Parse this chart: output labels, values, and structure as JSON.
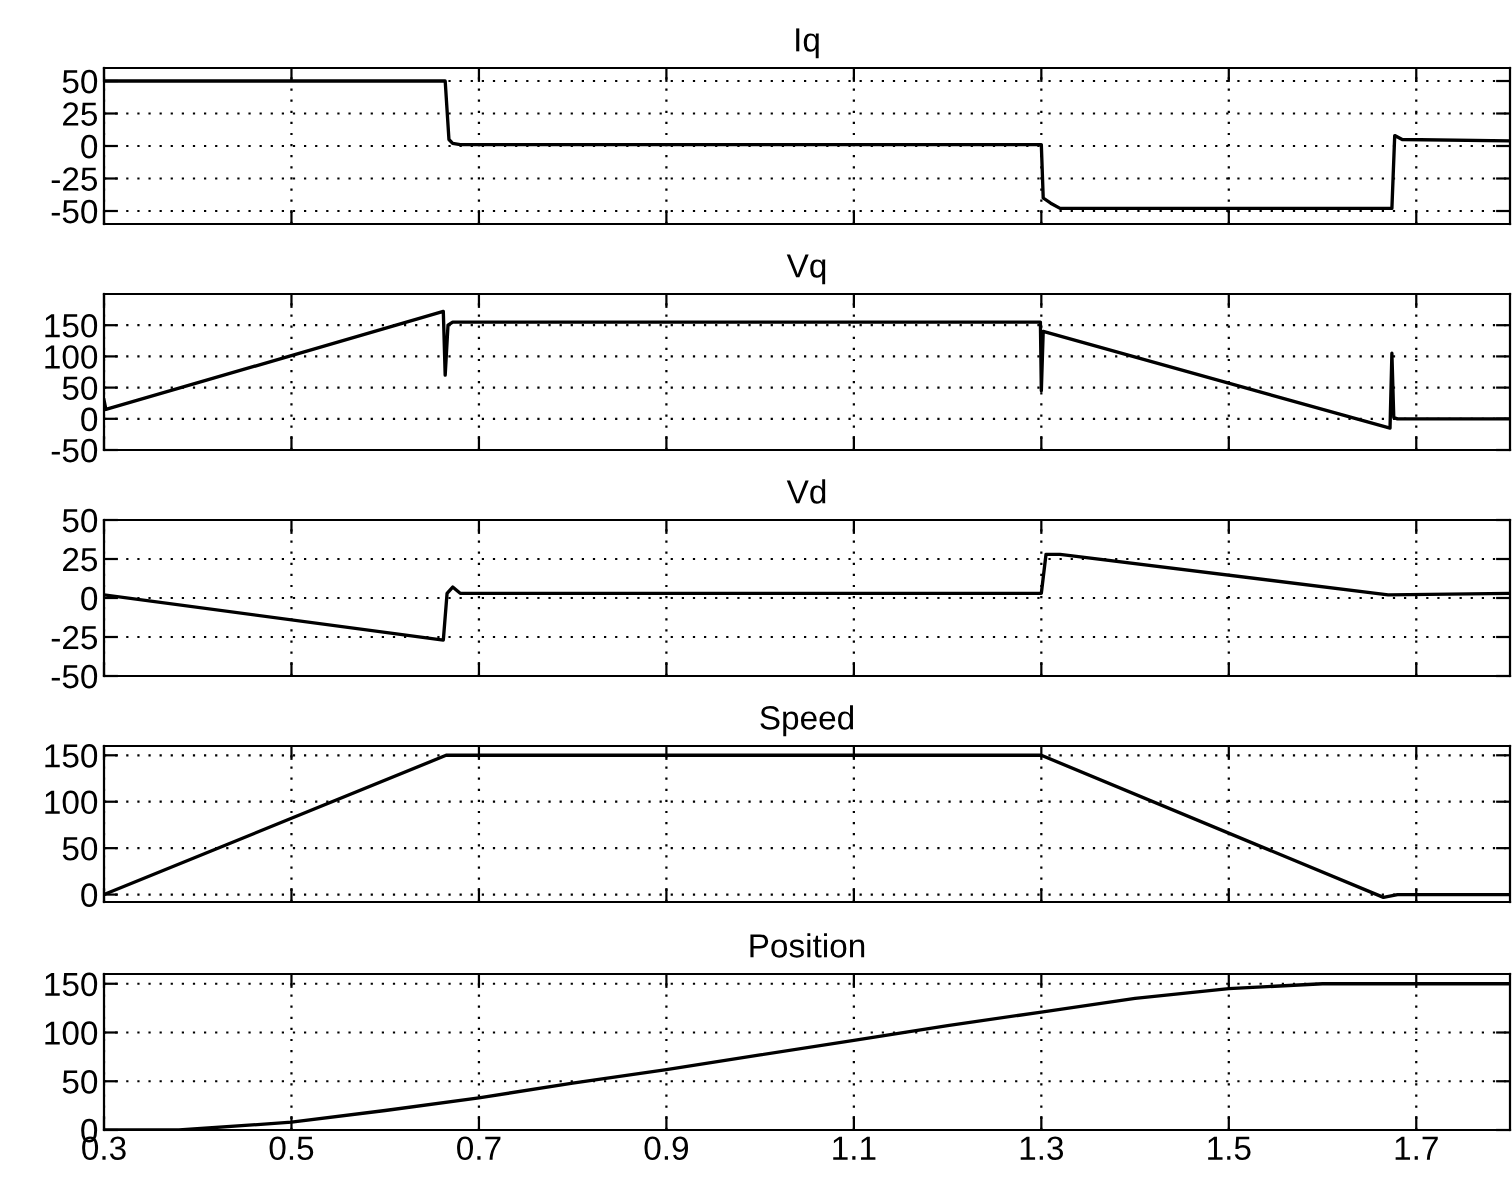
{
  "chart_data": [
    {
      "type": "line",
      "title": "Iq",
      "xlim": [
        0.3,
        1.8
      ],
      "xticks": [
        0.3,
        0.5,
        0.7,
        0.9,
        1.1,
        1.3,
        1.5,
        1.7
      ],
      "ylim": [
        -60,
        60
      ],
      "yticks": [
        -50,
        -25,
        0,
        25,
        50
      ],
      "grid": true,
      "tick_labels": "y",
      "series": [
        {
          "color": "#000000",
          "x": [
            0.3,
            0.664,
            0.668,
            0.672,
            0.68,
            1.3,
            1.302,
            1.31,
            1.32,
            1.674,
            1.677,
            1.685,
            1.8
          ],
          "values": [
            50,
            50,
            5,
            2,
            1,
            1,
            -40,
            -44,
            -48,
            -48,
            8,
            5,
            4
          ]
        }
      ]
    },
    {
      "type": "line",
      "title": "Vq",
      "xlim": [
        0.3,
        1.8
      ],
      "xticks": [
        0.3,
        0.5,
        0.7,
        0.9,
        1.1,
        1.3,
        1.5,
        1.7
      ],
      "ylim": [
        -50,
        200
      ],
      "yticks": [
        -50,
        0,
        50,
        100,
        150
      ],
      "grid": true,
      "tick_labels": "y",
      "series": [
        {
          "color": "#000000",
          "x": [
            0.3,
            0.302,
            0.662,
            0.664,
            0.667,
            0.672,
            1.299,
            1.3,
            1.302,
            1.672,
            1.674,
            1.676,
            1.68,
            1.8
          ],
          "values": [
            30,
            15,
            172,
            70,
            150,
            155,
            155,
            45,
            140,
            -15,
            105,
            2,
            0,
            0
          ]
        }
      ]
    },
    {
      "type": "line",
      "title": "Vd",
      "xlim": [
        0.3,
        1.8
      ],
      "xticks": [
        0.3,
        0.5,
        0.7,
        0.9,
        1.1,
        1.3,
        1.5,
        1.7
      ],
      "ylim": [
        -50,
        50
      ],
      "yticks": [
        -50,
        -25,
        0,
        25,
        50
      ],
      "grid": true,
      "tick_labels": "y",
      "series": [
        {
          "color": "#000000",
          "x": [
            0.3,
            0.662,
            0.666,
            0.672,
            0.68,
            1.3,
            1.305,
            1.32,
            1.67,
            1.8
          ],
          "values": [
            2,
            -27,
            3,
            7,
            3,
            3,
            28,
            28,
            2,
            3
          ]
        }
      ]
    },
    {
      "type": "line",
      "title": "Speed",
      "xlim": [
        0.3,
        1.8
      ],
      "xticks": [
        0.3,
        0.5,
        0.7,
        0.9,
        1.1,
        1.3,
        1.5,
        1.7
      ],
      "ylim": [
        -8,
        160
      ],
      "yticks": [
        0,
        50,
        100,
        150
      ],
      "grid": true,
      "tick_labels": "y",
      "series": [
        {
          "color": "#000000",
          "x": [
            0.3,
            0.665,
            1.3,
            1.665,
            1.68,
            1.8
          ],
          "values": [
            0,
            150,
            150,
            -3,
            0,
            0
          ]
        }
      ]
    },
    {
      "type": "line",
      "title": "Position",
      "xlim": [
        0.3,
        1.8
      ],
      "xticks": [
        0.3,
        0.5,
        0.7,
        0.9,
        1.1,
        1.3,
        1.5,
        1.7
      ],
      "ylim": [
        0,
        160
      ],
      "yticks": [
        0,
        50,
        100,
        150
      ],
      "grid": true,
      "series": [
        {
          "color": "#000000",
          "x": [
            0.3,
            0.38,
            0.5,
            0.6,
            0.7,
            0.8,
            0.9,
            1.0,
            1.1,
            1.2,
            1.3,
            1.4,
            1.5,
            1.6,
            1.8
          ],
          "values": [
            0,
            0,
            8,
            20,
            33,
            48,
            62,
            77,
            92,
            107,
            121,
            135,
            145,
            150,
            150
          ]
        }
      ]
    }
  ]
}
